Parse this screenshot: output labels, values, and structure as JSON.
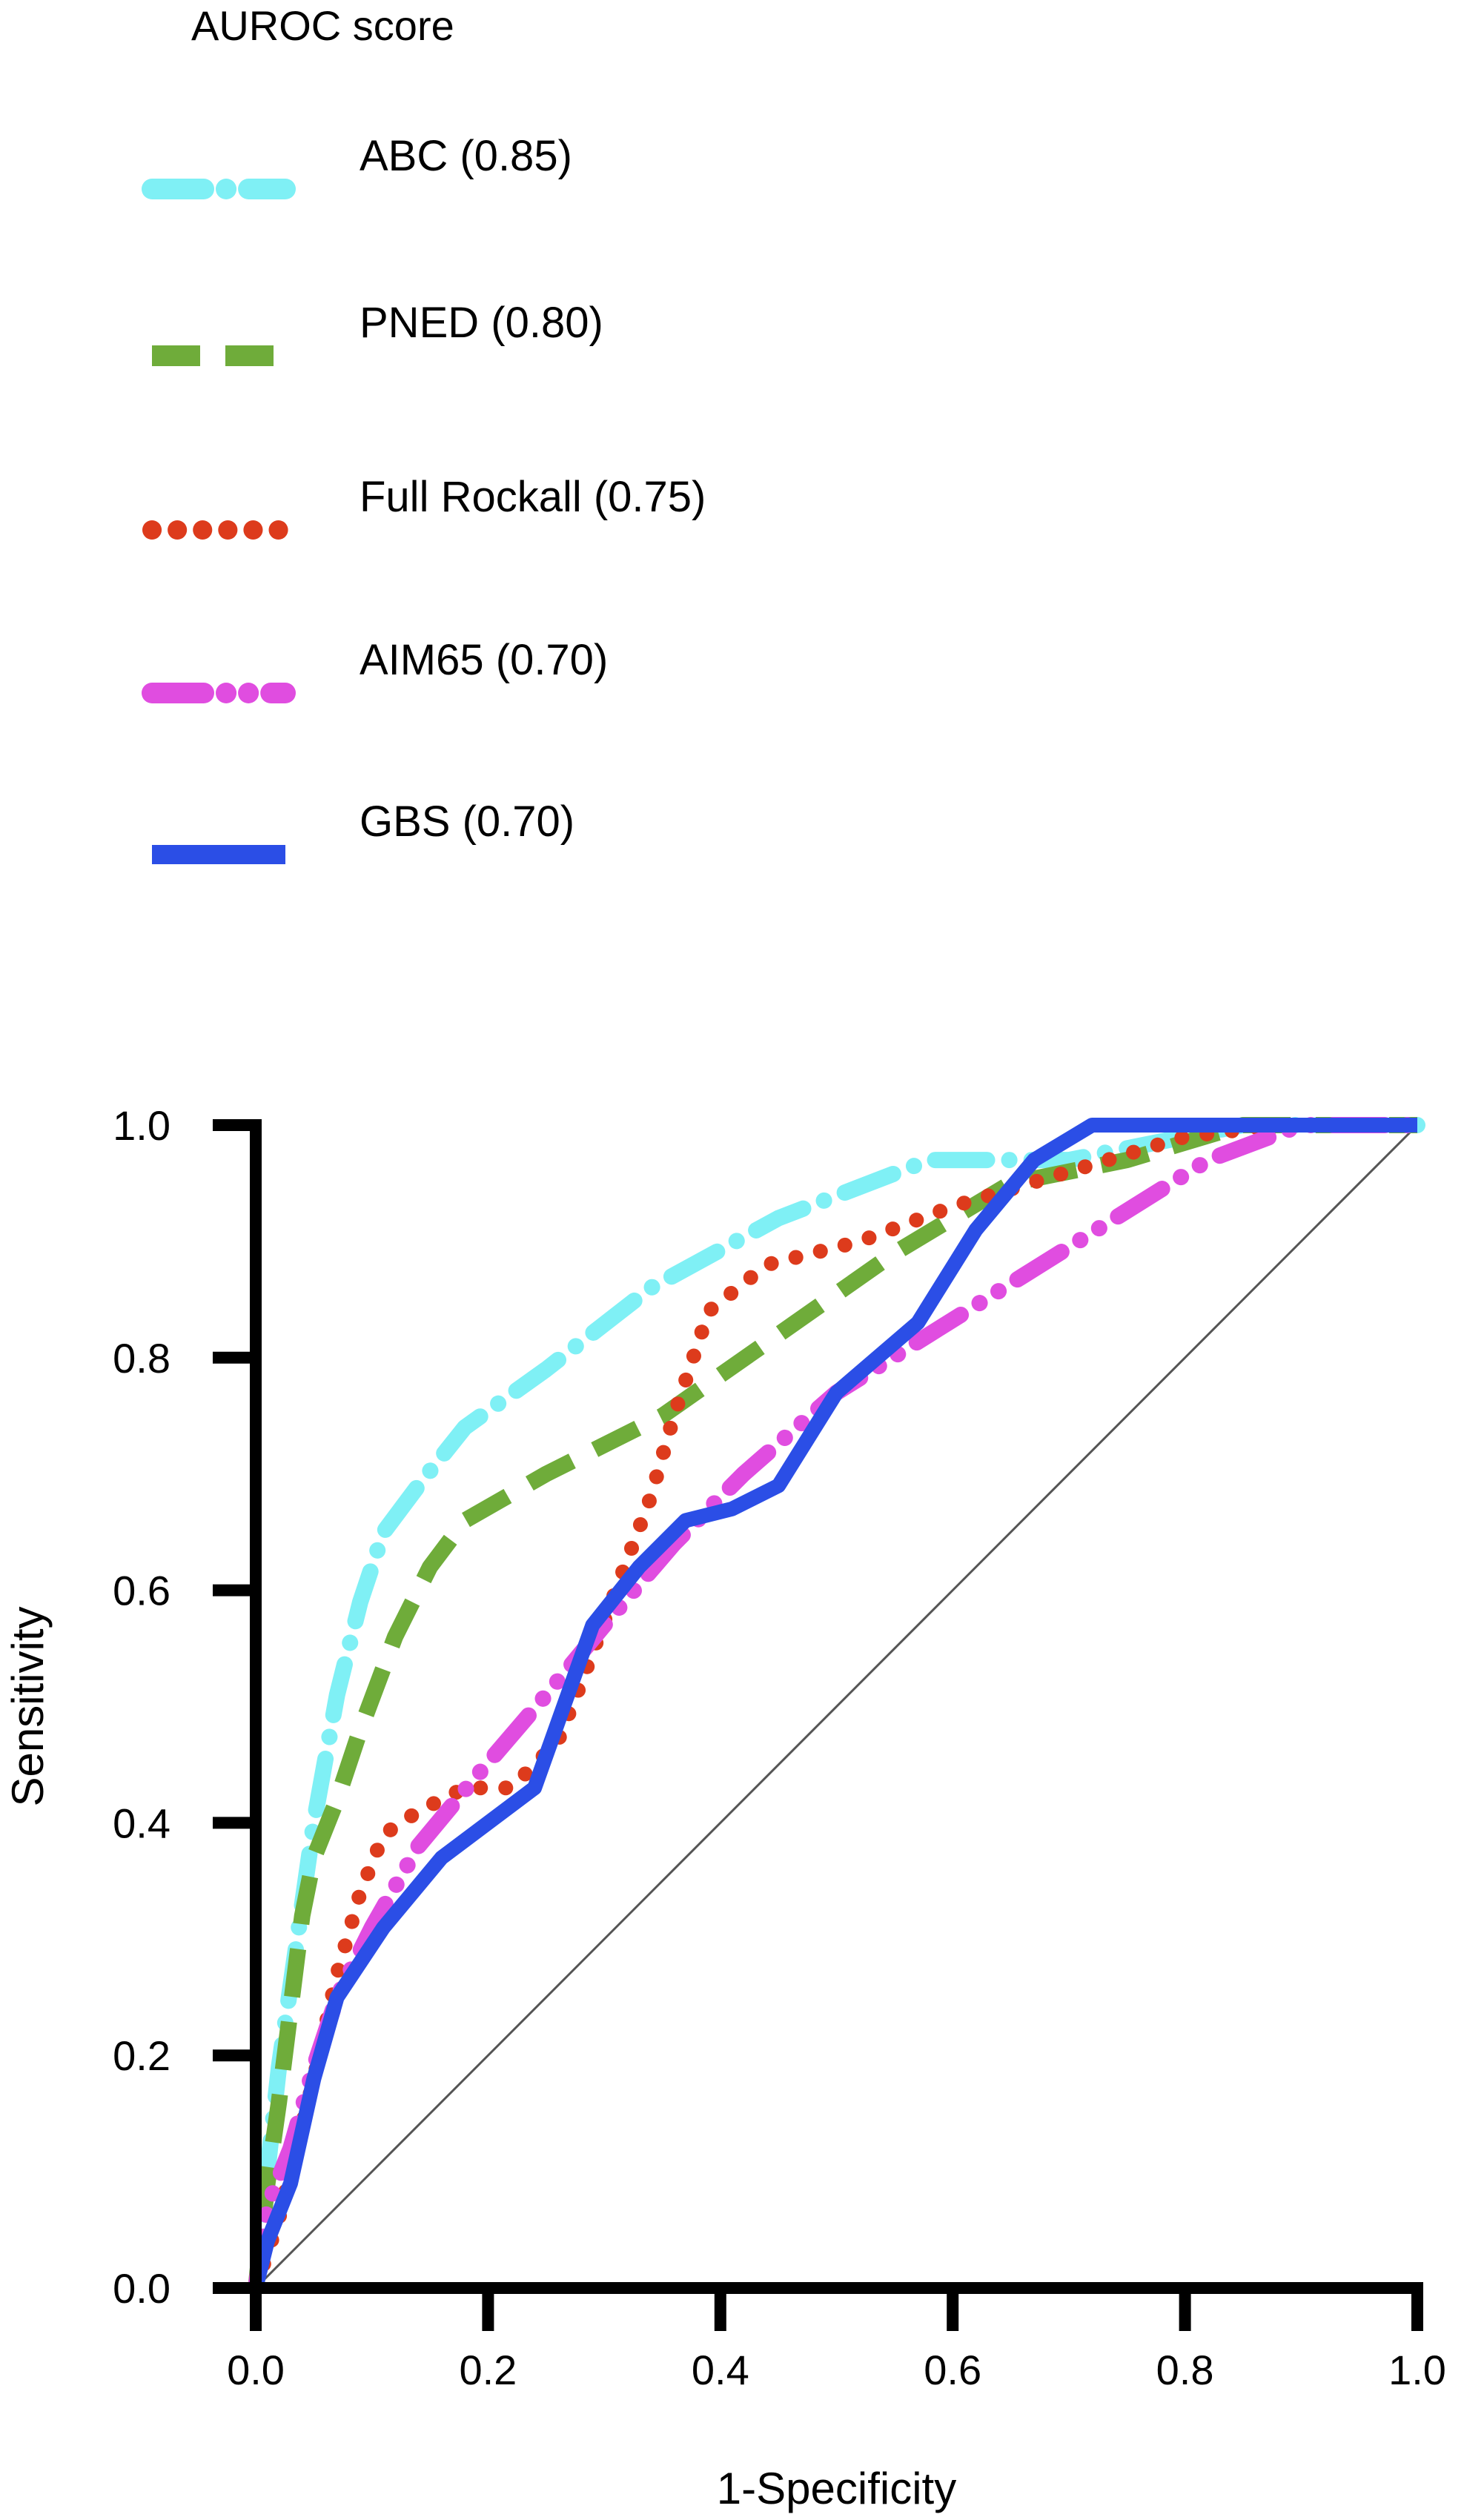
{
  "chart_data": {
    "type": "line",
    "title": "",
    "legend_title": "AUROC score",
    "legend_position": "top-left",
    "xlabel": "1-Specificity",
    "ylabel": "Sensitivity",
    "xlim": [
      0,
      1
    ],
    "ylim": [
      0,
      1
    ],
    "xticks": [
      "0.0",
      "0.2",
      "0.4",
      "0.6",
      "0.8",
      "1.0"
    ],
    "yticks": [
      "0.0",
      "0.2",
      "0.4",
      "0.6",
      "0.8",
      "1.0"
    ],
    "grid": false,
    "reference_line": {
      "x": [
        0,
        1
      ],
      "y": [
        0,
        1
      ],
      "color": "#555555"
    },
    "series": [
      {
        "name": "ABC (0.85)",
        "color": "#7ff0f5",
        "style": "dash-dot",
        "x": [
          0,
          0.005,
          0.01,
          0.02,
          0.03,
          0.04,
          0.05,
          0.07,
          0.09,
          0.11,
          0.14,
          0.18,
          0.25,
          0.34,
          0.45,
          0.58,
          0.7,
          0.85,
          1.0
        ],
        "y": [
          0,
          0.03,
          0.1,
          0.19,
          0.26,
          0.33,
          0.4,
          0.51,
          0.59,
          0.65,
          0.69,
          0.74,
          0.79,
          0.86,
          0.92,
          0.97,
          0.97,
          1.0,
          1.0
        ]
      },
      {
        "name": "PNED (0.80)",
        "color": "#6fac3a",
        "style": "dashed",
        "x": [
          0,
          0.01,
          0.02,
          0.03,
          0.04,
          0.05,
          0.07,
          0.09,
          0.12,
          0.15,
          0.18,
          0.25,
          0.35,
          0.45,
          0.55,
          0.65,
          0.75,
          0.85,
          1.0
        ],
        "y": [
          0,
          0.09,
          0.16,
          0.24,
          0.32,
          0.37,
          0.42,
          0.48,
          0.56,
          0.62,
          0.66,
          0.7,
          0.75,
          0.82,
          0.89,
          0.95,
          0.97,
          1.0,
          1.0
        ]
      },
      {
        "name": "Full Rockall (0.75)",
        "color": "#dd3b1c",
        "style": "dotted",
        "x": [
          0,
          0.01,
          0.02,
          0.03,
          0.05,
          0.07,
          0.09,
          0.11,
          0.14,
          0.18,
          0.22,
          0.26,
          0.28,
          0.31,
          0.34,
          0.36,
          0.39,
          0.44,
          0.52,
          0.6,
          0.7,
          0.8,
          0.88,
          1.0
        ],
        "y": [
          0,
          0.03,
          0.06,
          0.1,
          0.18,
          0.27,
          0.34,
          0.39,
          0.41,
          0.43,
          0.43,
          0.47,
          0.52,
          0.6,
          0.68,
          0.75,
          0.84,
          0.88,
          0.9,
          0.93,
          0.96,
          0.99,
          1.0,
          1.0
        ]
      },
      {
        "name": "AIM65 (0.70)",
        "color": "#e04de0",
        "style": "dash-dot-dot",
        "x": [
          0,
          0.01,
          0.03,
          0.05,
          0.07,
          0.1,
          0.14,
          0.19,
          0.25,
          0.3,
          0.36,
          0.42,
          0.5,
          0.58,
          0.66,
          0.74,
          0.82,
          0.9,
          1.0
        ],
        "y": [
          0,
          0.07,
          0.12,
          0.19,
          0.25,
          0.31,
          0.38,
          0.44,
          0.51,
          0.57,
          0.64,
          0.7,
          0.77,
          0.82,
          0.87,
          0.92,
          0.97,
          1.0,
          1.0
        ]
      },
      {
        "name": "GBS (0.70)",
        "color": "#2b4ee6",
        "style": "solid",
        "x": [
          0,
          0.01,
          0.03,
          0.05,
          0.07,
          0.11,
          0.16,
          0.24,
          0.29,
          0.33,
          0.37,
          0.41,
          0.45,
          0.5,
          0.57,
          0.62,
          0.67,
          0.72,
          0.8,
          0.9,
          1.0
        ],
        "y": [
          0,
          0.04,
          0.09,
          0.18,
          0.25,
          0.31,
          0.37,
          0.43,
          0.57,
          0.62,
          0.66,
          0.67,
          0.69,
          0.77,
          0.83,
          0.91,
          0.97,
          1.0,
          1.0,
          1.0,
          1.0
        ]
      }
    ]
  }
}
